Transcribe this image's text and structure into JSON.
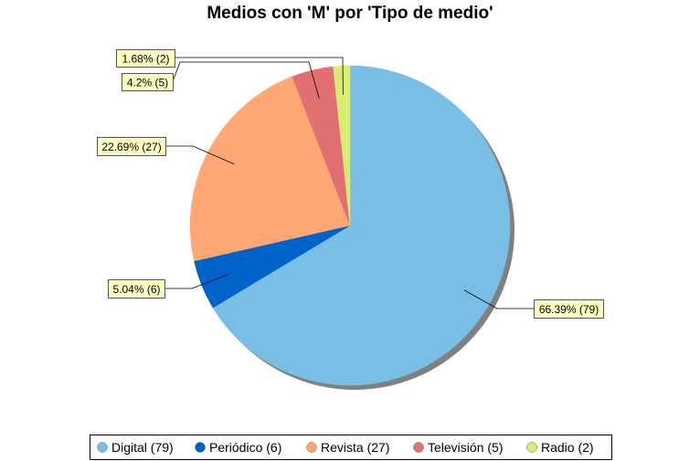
{
  "chart_data": {
    "type": "pie",
    "title": "Medios con 'M' por 'Tipo de medio'",
    "slices": [
      {
        "label": "Digital",
        "value": 79,
        "percent": 66.39,
        "percent_text": "66.39%",
        "legend_text": "Digital (79)",
        "color": "#79BEE5"
      },
      {
        "label": "Periódico",
        "value": 6,
        "percent": 5.04,
        "percent_text": "5.04%",
        "legend_text": "Periódico (6)",
        "color": "#0063CA"
      },
      {
        "label": "Revista",
        "value": 27,
        "percent": 22.69,
        "percent_text": "22.69%",
        "legend_text": "Revista (27)",
        "color": "#FFA874"
      },
      {
        "label": "Televisión",
        "value": 5,
        "percent": 4.2,
        "percent_text": "4.2%",
        "legend_text": "Televisión (5)",
        "color": "#E27072"
      },
      {
        "label": "Radio",
        "value": 2,
        "percent": 1.68,
        "percent_text": "1.68%",
        "legend_text": "Radio (2)",
        "color": "#D6EC72"
      }
    ],
    "start_angle": "12 o'clock",
    "direction": "clockwise",
    "legend_position": "bottom",
    "label_box_color": "#FFFFC0"
  }
}
